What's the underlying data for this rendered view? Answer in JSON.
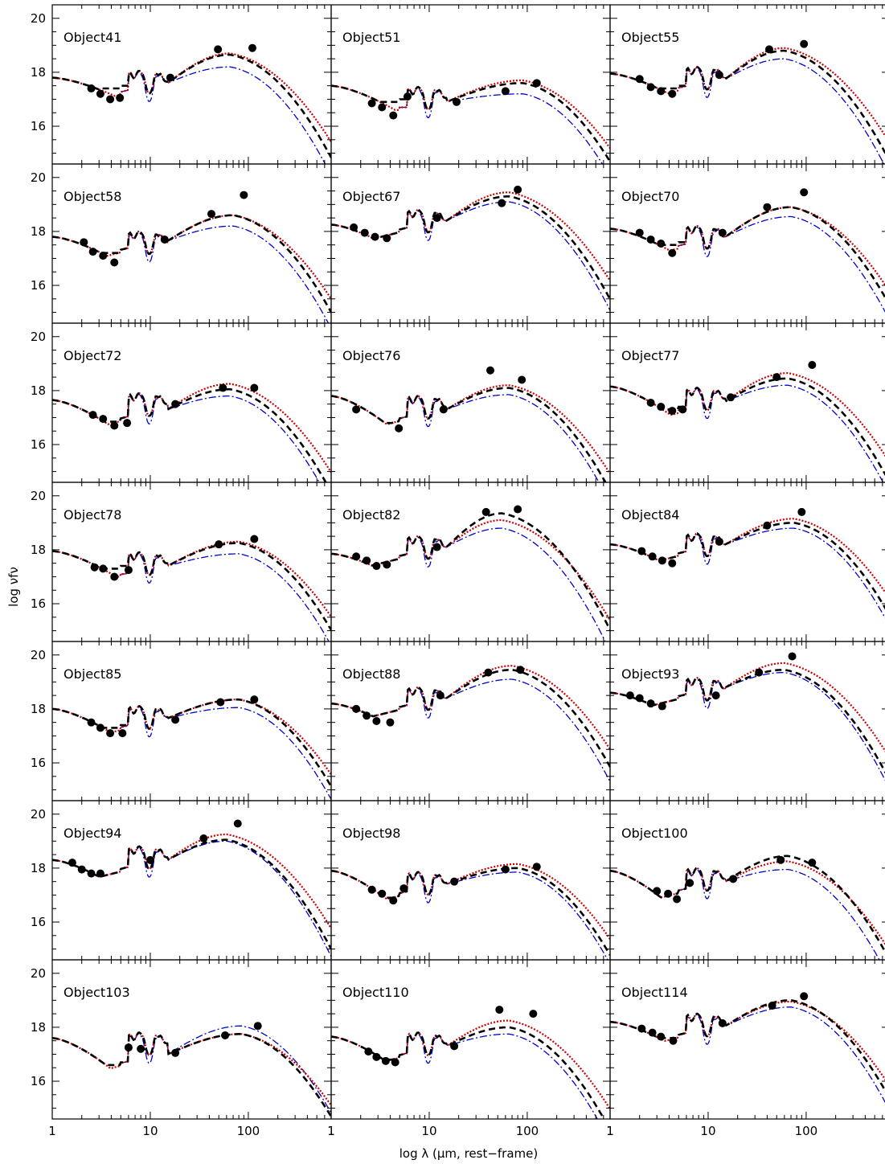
{
  "figure": {
    "ylabel": "log νfν",
    "xlabel": "log λ (μm, rest−frame)"
  },
  "chart_data": {
    "type": "line",
    "xscale": "log",
    "xlim": [
      1,
      700
    ],
    "ylim": [
      14.6,
      20.5
    ],
    "x_ticks": [
      "1",
      "10",
      "100"
    ],
    "y_ticks": [
      "16",
      "18",
      "20"
    ],
    "grid": false,
    "series_styles": {
      "model_dashed": {
        "color": "#000000",
        "style": "dashed"
      },
      "model_dotted": {
        "color": "#cc0000",
        "style": "dotted"
      },
      "model_dashdot": {
        "color": "#0000cc",
        "style": "dash-dot"
      },
      "observed": {
        "color": "#000000",
        "style": "filled-circle"
      }
    },
    "panels": [
      {
        "label": "Object41",
        "points": [
          [
            2.5,
            17.4
          ],
          [
            3.1,
            17.2
          ],
          [
            3.9,
            17.0
          ],
          [
            4.9,
            17.05
          ],
          [
            16,
            17.8
          ],
          [
            49,
            18.85
          ],
          [
            110,
            18.9
          ]
        ],
        "peak_x": 65,
        "peak": {
          "black": 18.65,
          "red": 18.7,
          "blue": 18.2
        },
        "mid": 17.6,
        "pah": 17.65,
        "left": 17.8,
        "left_blue": 17.8,
        "dip": 17.1
      },
      {
        "label": "Object51",
        "points": [
          [
            2.6,
            16.85
          ],
          [
            3.3,
            16.7
          ],
          [
            4.3,
            16.4
          ],
          [
            6,
            17.1
          ],
          [
            19,
            16.9
          ],
          [
            60,
            17.3
          ],
          [
            125,
            17.6
          ]
        ],
        "peak_x": 90,
        "peak": {
          "black": 17.6,
          "red": 17.7,
          "blue": 17.2
        },
        "mid": 16.9,
        "pah": 17.05,
        "left": 17.5,
        "left_blue": 17.5,
        "dip": 16.6
      },
      {
        "label": "Object55",
        "points": [
          [
            2.0,
            17.75
          ],
          [
            2.6,
            17.45
          ],
          [
            3.3,
            17.3
          ],
          [
            4.3,
            17.2
          ],
          [
            13,
            17.9
          ],
          [
            42,
            18.85
          ],
          [
            95,
            19.05
          ]
        ],
        "peak_x": 60,
        "peak": {
          "black": 18.8,
          "red": 18.9,
          "blue": 18.5
        },
        "mid": 17.75,
        "pah": 17.8,
        "left": 17.95,
        "left_blue": 17.95,
        "dip": 17.1
      },
      {
        "label": "Object58",
        "points": [
          [
            2.1,
            17.6
          ],
          [
            2.6,
            17.25
          ],
          [
            3.3,
            17.1
          ],
          [
            4.3,
            16.85
          ],
          [
            14,
            17.7
          ],
          [
            42,
            18.65
          ],
          [
            90,
            19.35
          ]
        ],
        "peak_x": 70,
        "peak": {
          "black": 18.6,
          "red": 18.6,
          "blue": 18.2
        },
        "mid": 17.65,
        "pah": 17.6,
        "left": 17.8,
        "left_blue": 17.8,
        "dip": 16.9
      },
      {
        "label": "Object67",
        "points": [
          [
            1.7,
            18.15
          ],
          [
            2.2,
            17.95
          ],
          [
            2.8,
            17.8
          ],
          [
            3.7,
            17.75
          ],
          [
            12,
            18.5
          ],
          [
            55,
            19.05
          ],
          [
            80,
            19.55
          ]
        ],
        "peak_x": 65,
        "peak": {
          "black": 19.3,
          "red": 19.45,
          "blue": 19.1
        },
        "mid": 18.4,
        "pah": 18.4,
        "left": 18.25,
        "left_blue": 18.25,
        "dip": 17.3
      },
      {
        "label": "Object70",
        "points": [
          [
            2.0,
            17.95
          ],
          [
            2.6,
            17.7
          ],
          [
            3.3,
            17.55
          ],
          [
            4.3,
            17.2
          ],
          [
            14,
            17.95
          ],
          [
            40,
            18.9
          ],
          [
            95,
            19.45
          ]
        ],
        "peak_x": 70,
        "peak": {
          "black": 18.9,
          "red": 18.9,
          "blue": 18.55
        },
        "mid": 17.8,
        "pah": 17.8,
        "left": 18.1,
        "left_blue": 18.1,
        "dip": 17.2
      },
      {
        "label": "Object72",
        "points": [
          [
            2.6,
            17.1
          ],
          [
            3.3,
            16.95
          ],
          [
            4.3,
            16.7
          ],
          [
            5.8,
            16.8
          ],
          [
            18,
            17.5
          ],
          [
            55,
            18.1
          ],
          [
            115,
            18.1
          ]
        ],
        "peak_x": 65,
        "peak": {
          "black": 18.05,
          "red": 18.25,
          "blue": 17.8
        },
        "mid": 17.3,
        "pah": 17.5,
        "left": 17.65,
        "left_blue": 17.65,
        "dip": 16.55
      },
      {
        "label": "Object76",
        "points": [
          [
            1.8,
            17.3
          ],
          [
            4.9,
            16.6
          ],
          [
            14,
            17.3
          ],
          [
            42,
            18.75
          ],
          [
            88,
            18.4
          ]
        ],
        "peak_x": 65,
        "peak": {
          "black": 18.1,
          "red": 18.2,
          "blue": 17.85
        },
        "mid": 17.3,
        "pah": 17.4,
        "left": 17.8,
        "left_blue": 17.8,
        "dip": 16.5
      },
      {
        "label": "Object77",
        "points": [
          [
            2.6,
            17.55
          ],
          [
            3.3,
            17.4
          ],
          [
            4.3,
            17.25
          ],
          [
            5.5,
            17.3
          ],
          [
            17,
            17.75
          ],
          [
            50,
            18.5
          ],
          [
            115,
            18.95
          ]
        ],
        "peak_x": 65,
        "peak": {
          "black": 18.45,
          "red": 18.65,
          "blue": 18.2
        },
        "mid": 17.6,
        "pah": 17.7,
        "left": 18.15,
        "left_blue": 18.15,
        "dip": 17.0
      },
      {
        "label": "Object78",
        "points": [
          [
            2.7,
            17.35
          ],
          [
            3.3,
            17.3
          ],
          [
            4.3,
            17.0
          ],
          [
            6,
            17.25
          ],
          [
            50,
            18.2
          ],
          [
            115,
            18.4
          ]
        ],
        "peak_x": 80,
        "peak": {
          "black": 18.25,
          "red": 18.3,
          "blue": 17.85
        },
        "mid": 17.4,
        "pah": 17.5,
        "left": 17.95,
        "left_blue": 17.95,
        "dip": 17.0
      },
      {
        "label": "Object82",
        "points": [
          [
            1.8,
            17.75
          ],
          [
            2.3,
            17.6
          ],
          [
            2.9,
            17.4
          ],
          [
            3.7,
            17.45
          ],
          [
            12,
            18.1
          ],
          [
            38,
            19.4
          ],
          [
            80,
            19.5
          ]
        ],
        "peak_x": 55,
        "peak": {
          "black": 19.35,
          "red": 19.1,
          "blue": 18.8
        },
        "mid": 18.1,
        "pah": 18.1,
        "left": 17.85,
        "left_blue": 17.85,
        "dip": 17.0
      },
      {
        "label": "Object84",
        "points": [
          [
            2.1,
            17.95
          ],
          [
            2.7,
            17.75
          ],
          [
            3.4,
            17.6
          ],
          [
            4.3,
            17.5
          ],
          [
            13,
            18.3
          ],
          [
            40,
            18.9
          ],
          [
            90,
            19.4
          ]
        ],
        "peak_x": 75,
        "peak": {
          "black": 19.0,
          "red": 19.15,
          "blue": 18.8
        },
        "mid": 18.2,
        "pah": 18.2,
        "left": 18.2,
        "left_blue": 18.2,
        "dip": 17.3
      },
      {
        "label": "Object85",
        "points": [
          [
            2.5,
            17.5
          ],
          [
            3.1,
            17.3
          ],
          [
            3.9,
            17.1
          ],
          [
            5.2,
            17.1
          ],
          [
            18,
            17.6
          ],
          [
            52,
            18.25
          ],
          [
            115,
            18.35
          ]
        ],
        "peak_x": 80,
        "peak": {
          "black": 18.35,
          "red": 18.35,
          "blue": 18.05
        },
        "mid": 17.65,
        "pah": 17.7,
        "left": 18.0,
        "left_blue": 18.0,
        "dip": 17.0
      },
      {
        "label": "Object88",
        "points": [
          [
            1.8,
            18.0
          ],
          [
            2.3,
            17.75
          ],
          [
            2.9,
            17.55
          ],
          [
            4.0,
            17.5
          ],
          [
            13,
            18.5
          ],
          [
            40,
            19.35
          ],
          [
            85,
            19.45
          ]
        ],
        "peak_x": 70,
        "peak": {
          "black": 19.45,
          "red": 19.6,
          "blue": 19.1
        },
        "mid": 18.4,
        "pah": 18.4,
        "left": 18.2,
        "left_blue": 18.2,
        "dip": 17.3
      },
      {
        "label": "Object93",
        "points": [
          [
            1.6,
            18.5
          ],
          [
            2.0,
            18.4
          ],
          [
            2.6,
            18.2
          ],
          [
            3.4,
            18.1
          ],
          [
            12,
            18.5
          ],
          [
            33,
            19.35
          ],
          [
            72,
            19.95
          ]
        ],
        "peak_x": 60,
        "peak": {
          "black": 19.45,
          "red": 19.7,
          "blue": 19.35
        },
        "mid": 18.8,
        "pah": 18.75,
        "left": 18.6,
        "left_blue": 18.6,
        "dip": 17.75
      },
      {
        "label": "Object94",
        "points": [
          [
            1.6,
            18.2
          ],
          [
            2.0,
            17.95
          ],
          [
            2.5,
            17.8
          ],
          [
            3.1,
            17.8
          ],
          [
            10,
            18.3
          ],
          [
            35,
            19.1
          ],
          [
            78,
            19.65
          ]
        ],
        "peak_x": 60,
        "peak": {
          "black": 19.05,
          "red": 19.25,
          "blue": 19.0
        },
        "mid": 18.3,
        "pah": 18.4,
        "left": 18.3,
        "left_blue": 18.3,
        "dip": 17.3
      },
      {
        "label": "Object98",
        "points": [
          [
            2.6,
            17.2
          ],
          [
            3.3,
            17.05
          ],
          [
            4.3,
            16.8
          ],
          [
            5.5,
            17.25
          ],
          [
            18,
            17.5
          ],
          [
            60,
            17.95
          ],
          [
            125,
            18.05
          ]
        ],
        "peak_x": 80,
        "peak": {
          "black": 18.0,
          "red": 18.15,
          "blue": 17.85
        },
        "mid": 17.4,
        "pah": 17.45,
        "left": 17.9,
        "left_blue": 17.9,
        "dip": 16.6
      },
      {
        "label": "Object100",
        "points": [
          [
            3.0,
            17.15
          ],
          [
            3.9,
            17.05
          ],
          [
            4.8,
            16.85
          ],
          [
            6.5,
            17.45
          ],
          [
            18,
            17.6
          ],
          [
            55,
            18.3
          ],
          [
            115,
            18.2
          ]
        ],
        "peak_x": 65,
        "peak": {
          "black": 18.45,
          "red": 18.25,
          "blue": 17.95
        },
        "mid": 17.5,
        "pah": 17.6,
        "left": 17.9,
        "left_blue": 17.9,
        "dip": 16.5
      },
      {
        "label": "Object103",
        "points": [
          [
            6,
            17.25
          ],
          [
            8,
            17.2
          ],
          [
            18,
            17.05
          ],
          [
            58,
            17.7
          ],
          [
            125,
            18.05
          ]
        ],
        "peak_x": 85,
        "peak": {
          "black": 17.75,
          "red": 17.75,
          "blue": 18.05
        },
        "mid": 17.0,
        "pah": 17.4,
        "left": 17.6,
        "left_blue": 17.3,
        "dip": 16.3
      },
      {
        "label": "Object110",
        "points": [
          [
            2.4,
            17.1
          ],
          [
            2.9,
            16.9
          ],
          [
            3.6,
            16.75
          ],
          [
            4.5,
            16.7
          ],
          [
            18,
            17.3
          ],
          [
            52,
            18.65
          ],
          [
            115,
            18.5
          ]
        ],
        "peak_x": 65,
        "peak": {
          "black": 18.0,
          "red": 18.25,
          "blue": 17.75
        },
        "mid": 17.3,
        "pah": 17.4,
        "left": 17.65,
        "left_blue": 17.65,
        "dip": 16.5
      },
      {
        "label": "Object114",
        "points": [
          [
            2.1,
            17.95
          ],
          [
            2.7,
            17.8
          ],
          [
            3.3,
            17.65
          ],
          [
            4.4,
            17.5
          ],
          [
            14,
            18.15
          ],
          [
            45,
            18.8
          ],
          [
            95,
            19.15
          ]
        ],
        "peak_x": 70,
        "peak": {
          "black": 19.0,
          "red": 18.95,
          "blue": 18.75
        },
        "mid": 18.05,
        "pah": 18.1,
        "left": 18.2,
        "left_blue": 18.2,
        "dip": 17.3
      }
    ]
  }
}
